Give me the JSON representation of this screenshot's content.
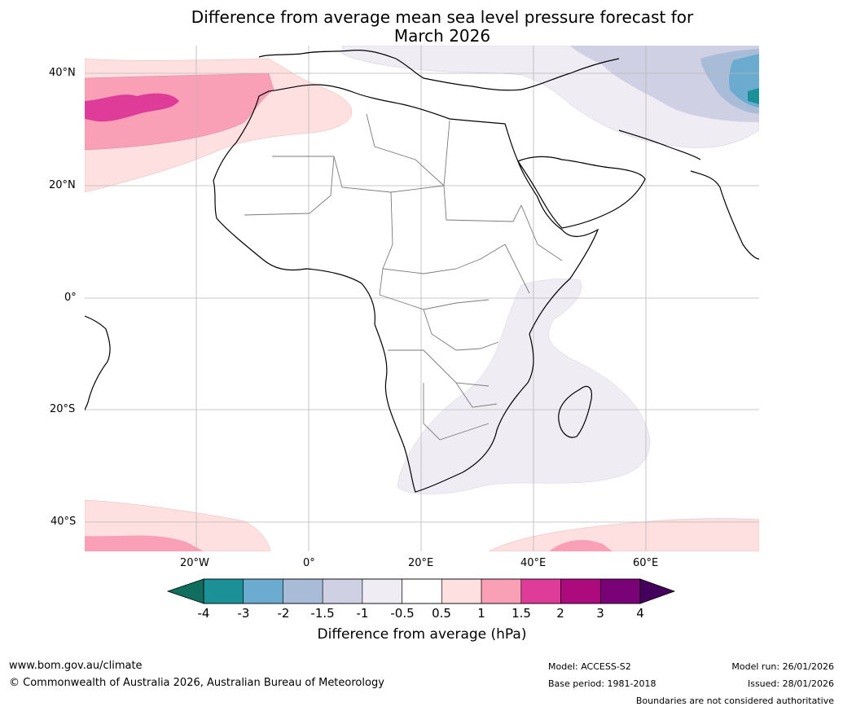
{
  "title_line1": "Difference from average mean sea level pressure forecast for",
  "title_line2": "March 2026",
  "lat_labels": [
    "40°N",
    "20°N",
    "0°",
    "20°S",
    "40°S"
  ],
  "lon_labels": [
    "20°W",
    "0°",
    "20°E",
    "40°E",
    "60°E"
  ],
  "colorbar": {
    "ticks": [
      "-4",
      "-3",
      "-2",
      "-1.5",
      "-1",
      "-0.5",
      "0.5",
      "1",
      "1.5",
      "2",
      "3",
      "4"
    ],
    "colors": [
      "#1b9097",
      "#6aabcf",
      "#a8bbd7",
      "#d0d0e4",
      "#f0ecf4",
      "#ffffff",
      "#fde0df",
      "#f9a0b6",
      "#df3b98",
      "#ad0a7e",
      "#7a0277"
    ],
    "under_color": "#106e5e",
    "over_color": "#45005c",
    "title": "Difference from average (hPa)"
  },
  "footer": {
    "url": "www.bom.gov.au/climate",
    "copyright": "© Commonwealth of Australia 2026, Australian Bureau of Meteorology",
    "model": "Model: ACCESS-S2",
    "base_period": "Base period: 1981-2018",
    "model_run": "Model run: 26/01/2026",
    "issued": "Issued: 28/01/2026",
    "disclaimer": "Boundaries are not considered authoritative"
  }
}
